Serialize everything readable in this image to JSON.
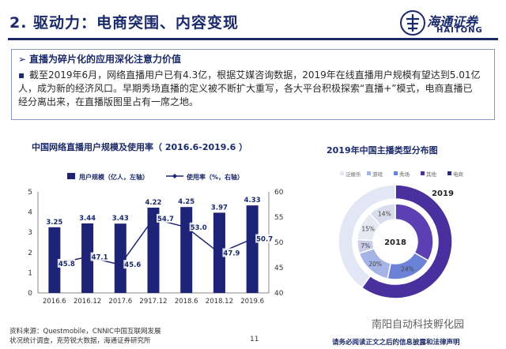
{
  "header": {
    "title": "2. 驱动力：电商突围、内容变现",
    "logo_cn": "海通证券",
    "logo_en": "HAITONG"
  },
  "summary": {
    "heading": "直播为碎片化的应用深化注意力价值",
    "body": "截至2019年6月，网络直播用户已有4.3亿，根据艾媒咨询数据，2019年在线直播用户规模有望达到5.01亿人，成为新的经济风口。早期秀场直播的定义被不断扩大重写，各大平台积极探索“直播+”模式，电商直播已经分离出来，在直播版图里占有一席之地。"
  },
  "chart_data": [
    {
      "type": "bar",
      "title": "中国网络直播用户规模及使用率（ 2016.6-2019.6 ）",
      "categories": [
        "2016.6",
        "2016.12",
        "2017.6",
        "2917.12",
        "2018.6",
        "2018.12",
        "2019.6"
      ],
      "series": [
        {
          "name": "用户规模（亿人，左轴）",
          "type": "bar",
          "axis": "left",
          "values": [
            3.25,
            3.44,
            3.43,
            4.22,
            4.25,
            3.97,
            4.33
          ],
          "labels": [
            "3.25",
            "3.44",
            "3.43",
            "4.22",
            "4.25",
            "3.97",
            "4.33"
          ]
        },
        {
          "name": "使用率（%，右轴）",
          "type": "line",
          "axis": "right",
          "values": [
            45.8,
            47.1,
            45.6,
            54.7,
            53.0,
            47.9,
            50.7
          ],
          "labels": [
            "45.8",
            "47.1",
            "45.6",
            "54.7",
            "53.0",
            "47.9",
            "50.7"
          ]
        }
      ],
      "y_left": {
        "range": [
          0,
          5
        ],
        "ticks": [
          "0",
          "1",
          "2",
          "3",
          "4",
          "5"
        ]
      },
      "y_right": {
        "range": [
          40,
          60
        ],
        "ticks": [
          "40",
          "45",
          "50",
          "55",
          "60"
        ]
      },
      "legend_position": "top",
      "colors": {
        "bar": "#1d2376",
        "line": "#1d2376"
      }
    },
    {
      "type": "pie",
      "subtype": "donut",
      "title": "2019年中国主播类型分布图",
      "legend": [
        "泛娱乐",
        "游戏",
        "秀场",
        "其他",
        "电商"
      ],
      "legend_position": "top",
      "rings": [
        {
          "label": "2019",
          "ring": "outer",
          "values": [
            60,
            40
          ],
          "colors": [
            "#4a2f9e",
            "#e3e6f4"
          ]
        },
        {
          "label": "2018",
          "ring": "inner",
          "values": [
            40,
            24,
            20,
            7,
            15,
            14
          ],
          "labels": [
            "",
            "24%",
            "20%",
            "7%",
            "15%",
            "14%"
          ],
          "colors": [
            "#5b3fb3",
            "#6c82d6",
            "#a6b3e6",
            "#c9cce6",
            "#e6e8f2",
            "#d9dced"
          ]
        }
      ]
    }
  ],
  "footer": {
    "source_line1": "资料来源：Questmobile，CNNIC中国互联网发展",
    "source_line2": "状况统计调查，克劳锐大数据，海通证券研究所",
    "page_number": "11",
    "watermark": "南阳自动科技孵化园",
    "disclaimer": "请务必阅读正文之后的信息披露和法律声明"
  }
}
